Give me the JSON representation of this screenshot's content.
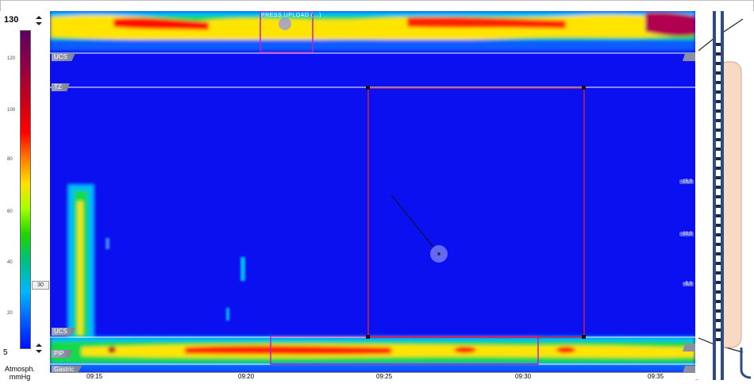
{
  "scale": {
    "max_value": "130",
    "min_value": "5",
    "unit_line1": "Atmosph.",
    "unit_line2": "mmHg",
    "ticks": [
      "120",
      "100",
      "80",
      "60",
      "40",
      "20"
    ],
    "side_marker": "30"
  },
  "lanes": {
    "ucs_top": "UCS",
    "tz": "TZ",
    "ucs_bottom": "UCS",
    "pip": "PIP",
    "gastric": "Gastric"
  },
  "selection_title": "PRESS.UPLOAD (...)",
  "depth_tags": [
    "-15,0",
    "-10,0",
    "-5,0"
  ],
  "time_axis": [
    "09:15",
    "09:20",
    "09:25",
    "09:30",
    "09:35"
  ],
  "colors": {
    "background_blue": "#0a10f0",
    "selection_box": "#d0203a",
    "markers": "#c020c0"
  }
}
